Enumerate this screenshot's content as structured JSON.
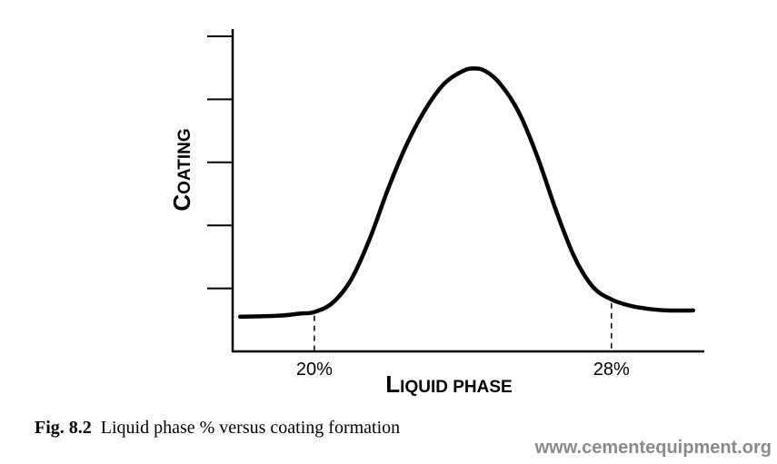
{
  "chart_data": {
    "type": "line",
    "title": "",
    "xlabel": {
      "first": "L",
      "rest": "IQUID PHASE"
    },
    "ylabel": {
      "first": "C",
      "rest": "OATING"
    },
    "x_tick_labels": [
      "20%",
      "28%"
    ],
    "x_tick_values": [
      20,
      28
    ],
    "xlim": [
      17.8,
      30.5
    ],
    "ylim": [
      0,
      1
    ],
    "y_ticks": [
      0.2,
      0.4,
      0.6,
      0.8,
      1.0
    ],
    "grid": false,
    "legend": "none",
    "series": [
      {
        "values": [
          {
            "x": 18.0,
            "y": 0.11
          },
          {
            "x": 19.0,
            "y": 0.113
          },
          {
            "x": 19.6,
            "y": 0.12
          },
          {
            "x": 20.0,
            "y": 0.125
          },
          {
            "x": 20.5,
            "y": 0.155
          },
          {
            "x": 21.0,
            "y": 0.23
          },
          {
            "x": 21.5,
            "y": 0.36
          },
          {
            "x": 22.0,
            "y": 0.52
          },
          {
            "x": 22.5,
            "y": 0.66
          },
          {
            "x": 23.0,
            "y": 0.77
          },
          {
            "x": 23.5,
            "y": 0.85
          },
          {
            "x": 24.0,
            "y": 0.89
          },
          {
            "x": 24.3,
            "y": 0.898
          },
          {
            "x": 24.6,
            "y": 0.89
          },
          {
            "x": 25.0,
            "y": 0.85
          },
          {
            "x": 25.5,
            "y": 0.76
          },
          {
            "x": 26.0,
            "y": 0.62
          },
          {
            "x": 26.5,
            "y": 0.45
          },
          {
            "x": 27.0,
            "y": 0.3
          },
          {
            "x": 27.5,
            "y": 0.205
          },
          {
            "x": 28.0,
            "y": 0.165
          },
          {
            "x": 28.5,
            "y": 0.145
          },
          {
            "x": 29.0,
            "y": 0.135
          },
          {
            "x": 29.5,
            "y": 0.13
          },
          {
            "x": 30.2,
            "y": 0.13
          }
        ]
      }
    ]
  },
  "caption": {
    "fig": "Fig. 8.2",
    "text": "Liquid phase % versus coating formation"
  },
  "watermark": "www.cementequipment.org"
}
